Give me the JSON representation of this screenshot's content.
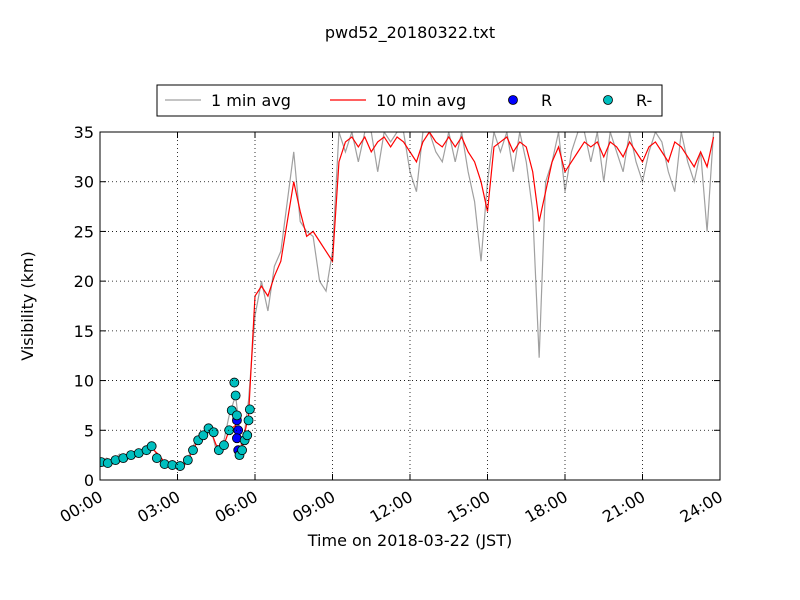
{
  "chart_data": {
    "type": "line",
    "title": "pwd52_20180322.txt",
    "x_label": "Time on 2018-03-22 (JST)",
    "y_label": "Visibility (km)",
    "xlim": [
      0,
      24
    ],
    "ylim": [
      0,
      35
    ],
    "xticks": [
      {
        "value": 0,
        "label": "00:00"
      },
      {
        "value": 3,
        "label": "03:00"
      },
      {
        "value": 6,
        "label": "06:00"
      },
      {
        "value": 9,
        "label": "09:00"
      },
      {
        "value": 12,
        "label": "12:00"
      },
      {
        "value": 15,
        "label": "15:00"
      },
      {
        "value": 18,
        "label": "18:00"
      },
      {
        "value": 21,
        "label": "21:00"
      },
      {
        "value": 24,
        "label": "24:00"
      }
    ],
    "yticks": [
      0,
      5,
      10,
      15,
      20,
      25,
      30,
      35
    ],
    "grid": true,
    "legend": "top",
    "series": [
      {
        "name": "1 min avg",
        "color": "#a0a0a0",
        "style": "line",
        "x": [
          0,
          0.25,
          0.5,
          0.75,
          1,
          1.25,
          1.5,
          1.75,
          2,
          2.25,
          2.5,
          2.75,
          3,
          3.25,
          3.5,
          3.75,
          4,
          4.25,
          4.5,
          4.75,
          5,
          5.25,
          5.5,
          5.75,
          6,
          6.25,
          6.5,
          6.75,
          7,
          7.25,
          7.5,
          7.75,
          8,
          8.25,
          8.5,
          8.75,
          9,
          9.25,
          9.5,
          9.75,
          10,
          10.25,
          10.5,
          10.75,
          11,
          11.25,
          11.5,
          11.75,
          12,
          12.25,
          12.5,
          12.75,
          13,
          13.25,
          13.5,
          13.75,
          14,
          14.25,
          14.5,
          14.75,
          15,
          15.25,
          15.5,
          15.75,
          16,
          16.25,
          16.5,
          16.75,
          17,
          17.25,
          17.5,
          17.75,
          18,
          18.25,
          18.5,
          18.75,
          19,
          19.25,
          19.5,
          19.75,
          20,
          20.25,
          20.5,
          20.75,
          21,
          21.25,
          21.5,
          21.75,
          22,
          22.25,
          22.5,
          22.75,
          23,
          23.25,
          23.5,
          23.75
        ],
        "values": [
          1.7,
          2.2,
          1.9,
          2.6,
          2.3,
          2.9,
          2.7,
          3.3,
          3.6,
          2.2,
          1.6,
          1.4,
          1.8,
          1.3,
          2.8,
          4.2,
          4.8,
          5.6,
          3.0,
          3.4,
          6.5,
          8.5,
          2.8,
          8.0,
          16.5,
          20,
          17,
          21.5,
          23,
          28,
          33,
          26,
          25,
          24.5,
          20,
          19,
          23,
          35,
          33,
          35,
          32,
          35,
          35,
          31,
          35,
          34,
          35,
          35,
          31,
          29,
          35,
          35,
          33,
          32,
          35,
          32,
          35,
          31,
          28,
          22,
          30,
          35,
          33,
          35,
          31,
          35,
          32,
          27,
          12.3,
          30,
          32,
          35,
          29,
          33,
          35,
          35,
          32,
          35,
          30,
          35,
          33,
          31,
          35,
          32,
          30,
          33,
          35,
          34,
          31,
          29,
          35,
          32,
          30,
          33,
          25,
          35
        ]
      },
      {
        "name": "10 min avg",
        "color": "#ff0000",
        "style": "line",
        "x": [
          0,
          0.25,
          0.5,
          0.75,
          1,
          1.25,
          1.5,
          1.75,
          2,
          2.25,
          2.5,
          2.75,
          3,
          3.25,
          3.5,
          3.75,
          4,
          4.25,
          4.5,
          4.75,
          5,
          5.25,
          5.5,
          5.75,
          6,
          6.25,
          6.5,
          6.75,
          7,
          7.25,
          7.5,
          7.75,
          8,
          8.25,
          8.5,
          8.75,
          9,
          9.25,
          9.5,
          9.75,
          10,
          10.25,
          10.5,
          10.75,
          11,
          11.25,
          11.5,
          11.75,
          12,
          12.25,
          12.5,
          12.75,
          13,
          13.25,
          13.5,
          13.75,
          14,
          14.25,
          14.5,
          14.75,
          15,
          15.25,
          15.5,
          15.75,
          16,
          16.25,
          16.5,
          16.75,
          17,
          17.25,
          17.5,
          17.75,
          18,
          18.25,
          18.5,
          18.75,
          19,
          19.25,
          19.5,
          19.75,
          20,
          20.25,
          20.5,
          20.75,
          21,
          21.25,
          21.5,
          21.75,
          22,
          22.25,
          22.5,
          22.75,
          23,
          23.25,
          23.5,
          23.75
        ],
        "values": [
          1.8,
          1.9,
          2.0,
          2.3,
          2.5,
          2.6,
          2.8,
          3.0,
          3.2,
          2.6,
          1.8,
          1.5,
          1.6,
          1.5,
          2.5,
          3.8,
          4.5,
          5.2,
          3.5,
          3.2,
          5.0,
          5.5,
          3.5,
          6.5,
          18.5,
          19.5,
          18.5,
          20.5,
          22,
          26,
          30,
          27,
          24.5,
          25,
          24,
          23,
          22,
          32,
          34,
          34.5,
          33.5,
          34.5,
          33,
          34,
          34.5,
          33.5,
          34.5,
          34,
          33,
          32,
          34,
          35,
          34,
          33.5,
          34.5,
          33.5,
          34.5,
          33,
          32,
          30,
          27,
          33.5,
          34,
          34.5,
          33,
          34,
          33.5,
          31,
          26,
          29,
          32,
          33.5,
          31,
          32,
          33,
          34,
          33.5,
          34,
          32.5,
          34,
          33.5,
          32.5,
          34,
          33,
          32,
          33.5,
          34,
          33,
          32,
          34,
          33.5,
          32.5,
          31.5,
          33,
          31.5,
          34.5
        ]
      },
      {
        "name": "R",
        "color": "#0000ff",
        "style": "marker",
        "x": [
          5.3,
          5.35,
          5.3,
          5.35
        ],
        "values": [
          6.0,
          5.0,
          4.2,
          3.0
        ]
      },
      {
        "name": "R-",
        "color": "#00bfbf",
        "style": "marker",
        "x": [
          0.05,
          0.3,
          0.6,
          0.9,
          1.2,
          1.5,
          1.8,
          2.0,
          2.2,
          2.5,
          2.8,
          3.1,
          3.4,
          3.6,
          3.8,
          4.0,
          4.2,
          4.4,
          4.6,
          4.8,
          5.0,
          5.1,
          5.2,
          5.25,
          5.3,
          5.4,
          5.5,
          5.6,
          5.7,
          5.75,
          5.8
        ],
        "values": [
          1.8,
          1.7,
          2.0,
          2.2,
          2.5,
          2.7,
          3.0,
          3.4,
          2.2,
          1.6,
          1.5,
          1.4,
          2.0,
          3.0,
          4.0,
          4.5,
          5.2,
          4.8,
          3.0,
          3.5,
          5.0,
          7.0,
          9.8,
          8.5,
          6.5,
          2.5,
          3.0,
          4.0,
          4.5,
          6.0,
          7.1
        ]
      }
    ]
  }
}
